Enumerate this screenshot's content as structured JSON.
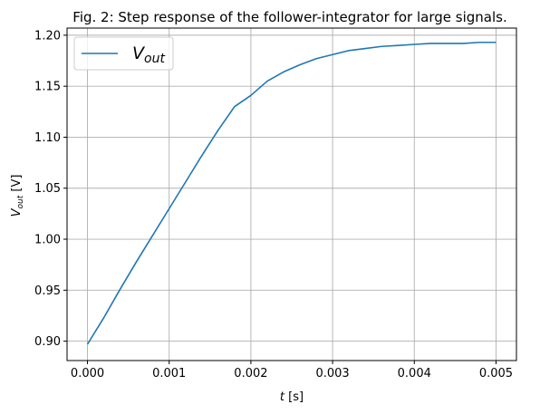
{
  "chart_data": {
    "type": "line",
    "title": "Fig. 2: Step response of the follower-integrator for large signals.",
    "xlabel_var": "t",
    "xlabel_unit": " [s]",
    "ylabel_var": "V",
    "ylabel_sub": "out",
    "ylabel_unit": " [V]",
    "xlim": [
      -0.00025,
      0.00525
    ],
    "ylim": [
      0.881,
      1.207
    ],
    "xticks": [
      0.0,
      0.001,
      0.002,
      0.003,
      0.004,
      0.005
    ],
    "xtick_labels": [
      "0.000",
      "0.001",
      "0.002",
      "0.003",
      "0.004",
      "0.005"
    ],
    "yticks": [
      0.9,
      0.95,
      1.0,
      1.05,
      1.1,
      1.15,
      1.2
    ],
    "ytick_labels": [
      "0.90",
      "0.95",
      "1.00",
      "1.05",
      "1.10",
      "1.15",
      "1.20"
    ],
    "grid": true,
    "legend_placement": "top-left",
    "series": [
      {
        "name_var": "V",
        "name_sub": "out",
        "color": "#1f77b4",
        "x": [
          0.0,
          0.0002,
          0.0004,
          0.0006,
          0.0008,
          0.001,
          0.0012,
          0.0014,
          0.0016,
          0.0018,
          0.002,
          0.0022,
          0.0024,
          0.0026,
          0.0028,
          0.003,
          0.0032,
          0.0034,
          0.0036,
          0.0038,
          0.004,
          0.0042,
          0.0044,
          0.0046,
          0.0048,
          0.005
        ],
        "y": [
          0.897,
          0.923,
          0.951,
          0.978,
          1.004,
          1.03,
          1.056,
          1.082,
          1.107,
          1.13,
          1.141,
          1.155,
          1.164,
          1.171,
          1.177,
          1.181,
          1.185,
          1.187,
          1.189,
          1.19,
          1.191,
          1.192,
          1.192,
          1.192,
          1.193,
          1.193
        ]
      }
    ]
  }
}
